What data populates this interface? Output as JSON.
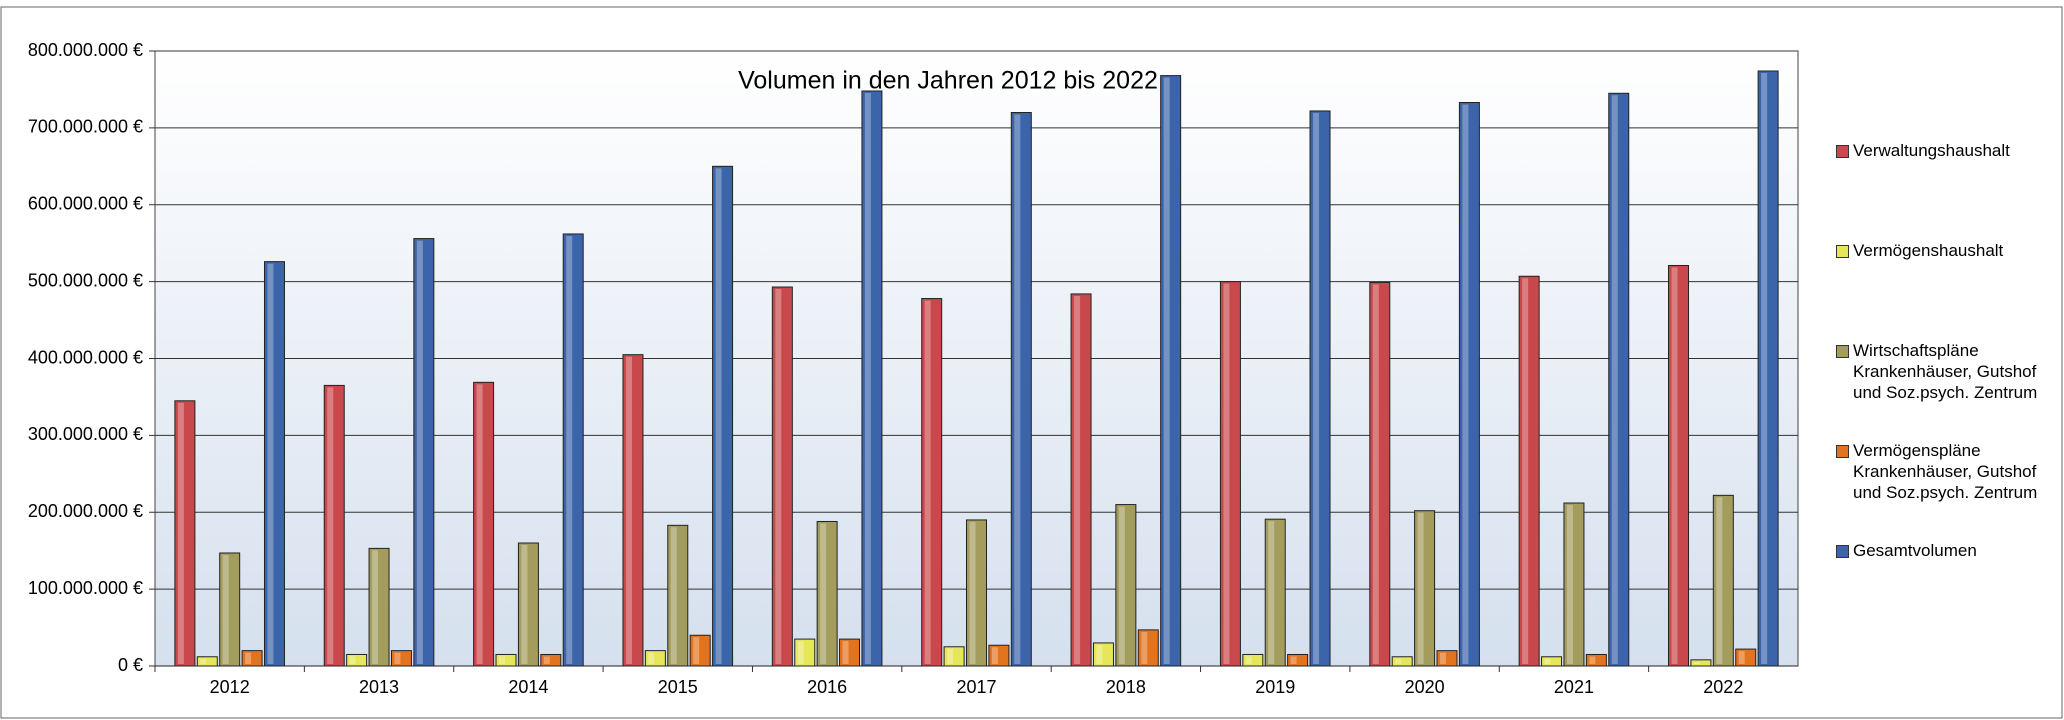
{
  "chart_data": {
    "type": "bar",
    "title": "Volumen in den Jahren 2012 bis 2022",
    "categories": [
      "2012",
      "2013",
      "2014",
      "2015",
      "2016",
      "2017",
      "2018",
      "2019",
      "2020",
      "2021",
      "2022"
    ],
    "series": [
      {
        "name": "Verwaltungshaushalt",
        "color": "#c9484b",
        "values": [
          345000000,
          365000000,
          369000000,
          405000000,
          493000000,
          478000000,
          484000000,
          500000000,
          499000000,
          507000000,
          521000000
        ]
      },
      {
        "name": "Vermögenshaushalt",
        "color": "#e6e65a",
        "values": [
          12000000,
          15000000,
          15000000,
          20000000,
          35000000,
          25000000,
          30000000,
          15000000,
          12000000,
          12000000,
          8000000
        ]
      },
      {
        "name": "Wirtschaftspläne Krankenhäuser, Gutshof und Soz.psych. Zentrum",
        "color": "#a39c5c",
        "values": [
          147000000,
          153000000,
          160000000,
          183000000,
          188000000,
          190000000,
          210000000,
          191000000,
          202000000,
          212000000,
          222000000
        ]
      },
      {
        "name": "Vermögenspläne Krankenhäuser, Gutshof und Soz.psych. Zentrum",
        "color": "#e2731f",
        "values": [
          20000000,
          20000000,
          15000000,
          40000000,
          35000000,
          27000000,
          47000000,
          15000000,
          20000000,
          15000000,
          22000000
        ]
      },
      {
        "name": "Gesamtvolumen",
        "color": "#3c64aa",
        "values": [
          526000000,
          556000000,
          562000000,
          650000000,
          748000000,
          720000000,
          768000000,
          722000000,
          733000000,
          745000000,
          774000000
        ]
      }
    ],
    "ylim": [
      0,
      800000000
    ],
    "yticks": [
      {
        "value": 0,
        "label": "0 €"
      },
      {
        "value": 100000000,
        "label": "100.000.000 €"
      },
      {
        "value": 200000000,
        "label": "200.000.000 €"
      },
      {
        "value": 300000000,
        "label": "300.000.000 €"
      },
      {
        "value": 400000000,
        "label": "400.000.000 €"
      },
      {
        "value": 500000000,
        "label": "500.000.000 €"
      },
      {
        "value": 600000000,
        "label": "600.000.000 €"
      },
      {
        "value": 700000000,
        "label": "700.000.000 €"
      },
      {
        "value": 800000000,
        "label": "800.000.000 €"
      }
    ],
    "grid": true,
    "legend": "right"
  }
}
